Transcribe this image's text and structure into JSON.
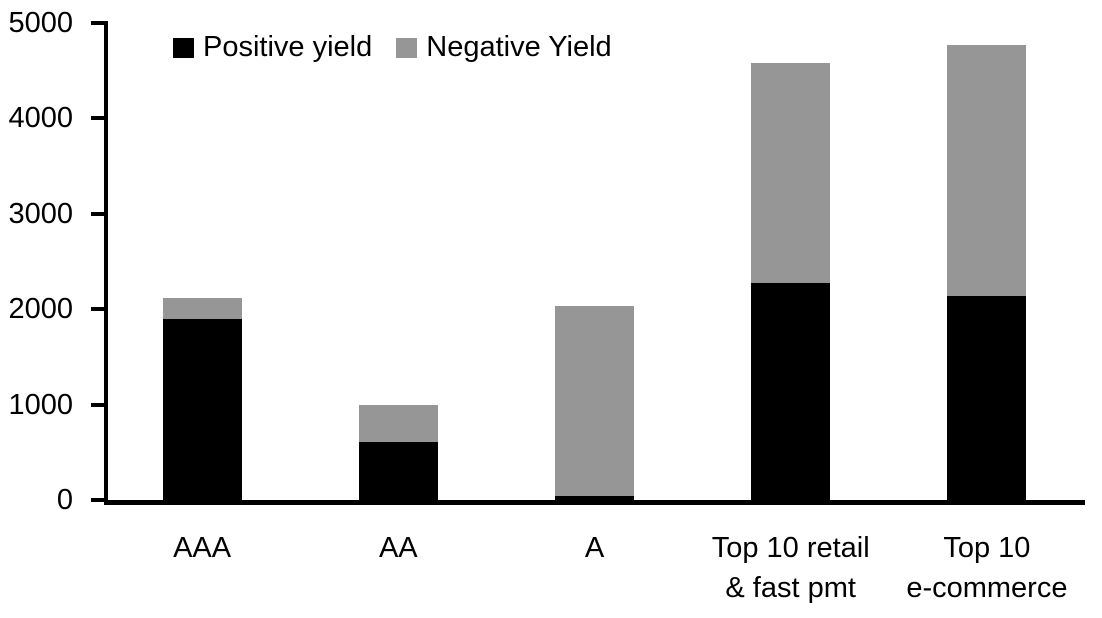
{
  "chart_data": {
    "type": "bar",
    "stacked": true,
    "title": "",
    "categories": [
      "AAA",
      "AA",
      "A",
      "Top 10 retail\n& fast pmt",
      "Top 10\ne-commerce"
    ],
    "series": [
      {
        "name": "Positive yield",
        "color": "#000000",
        "values": [
          1900,
          610,
          40,
          2270,
          2140
        ]
      },
      {
        "name": "Negative Yield",
        "color": "#969696",
        "values": [
          220,
          390,
          1990,
          2310,
          2630
        ]
      }
    ],
    "totals": [
      2120,
      1000,
      2030,
      4580,
      4770
    ],
    "xlabel": "",
    "ylabel": "",
    "ylim": [
      0,
      5000
    ],
    "yticks": [
      0,
      1000,
      2000,
      3000,
      4000,
      5000
    ],
    "ytick_labels": [
      "0",
      "1000",
      "2000",
      "3000",
      "4000",
      "5000"
    ],
    "legend_position": "top-inside",
    "grid": false,
    "axis_color": "#000000",
    "background_color": "#ffffff"
  }
}
